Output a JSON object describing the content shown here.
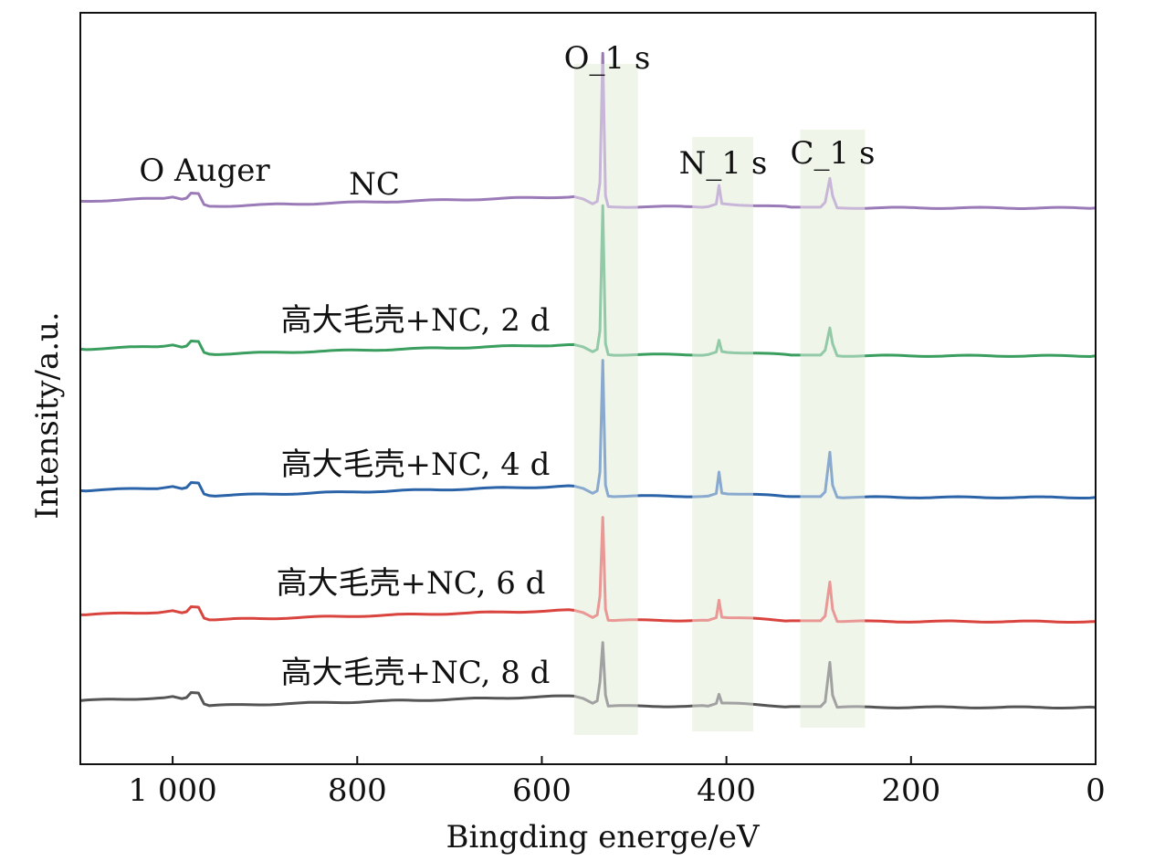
{
  "chart_data": {
    "type": "line",
    "xlabel": "Bingding energe/eV",
    "ylabel": "Intensity/a.u.",
    "xlim": [
      1100,
      0
    ],
    "x_reversed": true,
    "xticks": [
      1000,
      800,
      600,
      400,
      200,
      0
    ],
    "xtick_labels": [
      "1 000",
      "800",
      "600",
      "400",
      "200",
      "0"
    ],
    "y_ticks_shown": false,
    "grid": false,
    "legend": "none",
    "series": [
      {
        "name": "NC",
        "color": "#9B7AB8",
        "points": [
          [
            1100,
            1.5
          ],
          [
            1010,
            2.8
          ],
          [
            1000,
            3.4
          ],
          [
            990,
            2.4
          ],
          [
            985,
            2.9
          ],
          [
            980,
            5.2
          ],
          [
            972,
            5.0
          ],
          [
            966,
            0.0
          ],
          [
            960,
            -0.8
          ],
          [
            565,
            3.6
          ],
          [
            555,
            2.5
          ],
          [
            545,
            0.3
          ],
          [
            540,
            1.4
          ],
          [
            537,
            10.0
          ],
          [
            534,
            69.0
          ],
          [
            531,
            4.0
          ],
          [
            528,
            -1.0
          ],
          [
            420,
            -1.0
          ],
          [
            411,
            0.2
          ],
          [
            408,
            8.7
          ],
          [
            405,
            0.4
          ],
          [
            330,
            -1.2
          ],
          [
            298,
            -1.2
          ],
          [
            293,
            1.0
          ],
          [
            288,
            11.9
          ],
          [
            285,
            4.0
          ],
          [
            280,
            -1.5
          ],
          [
            0,
            -1.6
          ]
        ]
      },
      {
        "name": "高大毛壳+NC, 2 d",
        "color": "#3A9E5F",
        "points": [
          [
            1100,
            1.5
          ],
          [
            1010,
            2.8
          ],
          [
            1000,
            3.4
          ],
          [
            990,
            2.4
          ],
          [
            985,
            2.9
          ],
          [
            980,
            5.2
          ],
          [
            972,
            5.0
          ],
          [
            966,
            0.0
          ],
          [
            960,
            -0.8
          ],
          [
            565,
            3.6
          ],
          [
            555,
            2.5
          ],
          [
            545,
            0.3
          ],
          [
            540,
            1.4
          ],
          [
            537,
            10.0
          ],
          [
            534,
            67.0
          ],
          [
            531,
            4.0
          ],
          [
            528,
            -1.0
          ],
          [
            420,
            -1.0
          ],
          [
            411,
            0.2
          ],
          [
            408,
            5.6
          ],
          [
            405,
            0.4
          ],
          [
            330,
            -1.2
          ],
          [
            298,
            -1.2
          ],
          [
            293,
            1.0
          ],
          [
            288,
            11.2
          ],
          [
            285,
            4.0
          ],
          [
            280,
            -1.5
          ],
          [
            0,
            -1.6
          ]
        ]
      },
      {
        "name": "高大毛壳+NC, 4 d",
        "color": "#2B63A8",
        "points": [
          [
            1100,
            1.5
          ],
          [
            1010,
            2.8
          ],
          [
            1000,
            3.4
          ],
          [
            990,
            2.4
          ],
          [
            985,
            2.9
          ],
          [
            980,
            5.2
          ],
          [
            972,
            5.0
          ],
          [
            966,
            0.0
          ],
          [
            960,
            -0.8
          ],
          [
            565,
            3.6
          ],
          [
            555,
            2.5
          ],
          [
            545,
            0.3
          ],
          [
            540,
            1.4
          ],
          [
            537,
            10.0
          ],
          [
            534,
            61.0
          ],
          [
            531,
            4.0
          ],
          [
            528,
            -1.0
          ],
          [
            420,
            -1.0
          ],
          [
            411,
            0.2
          ],
          [
            408,
            10.0
          ],
          [
            405,
            0.4
          ],
          [
            330,
            -1.2
          ],
          [
            298,
            -1.2
          ],
          [
            293,
            1.0
          ],
          [
            288,
            19.1
          ],
          [
            285,
            4.0
          ],
          [
            280,
            -1.5
          ],
          [
            0,
            -1.6
          ]
        ]
      },
      {
        "name": "高大毛壳+NC, 6 d",
        "color": "#D9443F",
        "points": [
          [
            1100,
            1.5
          ],
          [
            1010,
            2.8
          ],
          [
            1000,
            3.4
          ],
          [
            990,
            2.4
          ],
          [
            985,
            2.9
          ],
          [
            980,
            5.2
          ],
          [
            972,
            5.0
          ],
          [
            966,
            0.0
          ],
          [
            960,
            -0.8
          ],
          [
            565,
            3.6
          ],
          [
            555,
            2.5
          ],
          [
            545,
            0.3
          ],
          [
            540,
            1.4
          ],
          [
            537,
            10.0
          ],
          [
            534,
            46.0
          ],
          [
            531,
            4.0
          ],
          [
            528,
            -1.0
          ],
          [
            420,
            -1.0
          ],
          [
            411,
            0.2
          ],
          [
            408,
            8.2
          ],
          [
            405,
            0.4
          ],
          [
            330,
            -1.2
          ],
          [
            298,
            -1.2
          ],
          [
            293,
            1.0
          ],
          [
            288,
            16.5
          ],
          [
            285,
            4.0
          ],
          [
            280,
            -1.5
          ],
          [
            0,
            -1.6
          ]
        ]
      },
      {
        "name": "高大毛壳+NC, 8 d",
        "color": "#555555",
        "points": [
          [
            1100,
            1.5
          ],
          [
            1010,
            2.8
          ],
          [
            1000,
            3.4
          ],
          [
            990,
            2.4
          ],
          [
            985,
            2.9
          ],
          [
            980,
            5.2
          ],
          [
            972,
            5.0
          ],
          [
            966,
            0.0
          ],
          [
            960,
            -0.8
          ],
          [
            565,
            3.6
          ],
          [
            555,
            2.5
          ],
          [
            545,
            0.3
          ],
          [
            540,
            1.4
          ],
          [
            537,
            10.0
          ],
          [
            534,
            28.0
          ],
          [
            531,
            4.0
          ],
          [
            528,
            -1.0
          ],
          [
            420,
            -1.0
          ],
          [
            411,
            0.2
          ],
          [
            408,
            4.4
          ],
          [
            405,
            0.4
          ],
          [
            330,
            -1.2
          ],
          [
            298,
            -1.2
          ],
          [
            293,
            1.0
          ],
          [
            288,
            19.0
          ],
          [
            285,
            4.0
          ],
          [
            280,
            -1.5
          ],
          [
            0,
            -1.6
          ]
        ]
      }
    ],
    "highlight_bands": [
      {
        "label": "O_1 s",
        "x_from": 565,
        "x_to": 496
      },
      {
        "label": "N_1 s",
        "x_from": 437,
        "x_to": 371
      },
      {
        "label": "C_1 s",
        "x_from": 320,
        "x_to": 250
      }
    ],
    "highlight_color": "#E3EDD9",
    "annotations": [
      {
        "text": "O Auger",
        "x": 960
      },
      {
        "text": "NC",
        "x": 770
      }
    ]
  }
}
